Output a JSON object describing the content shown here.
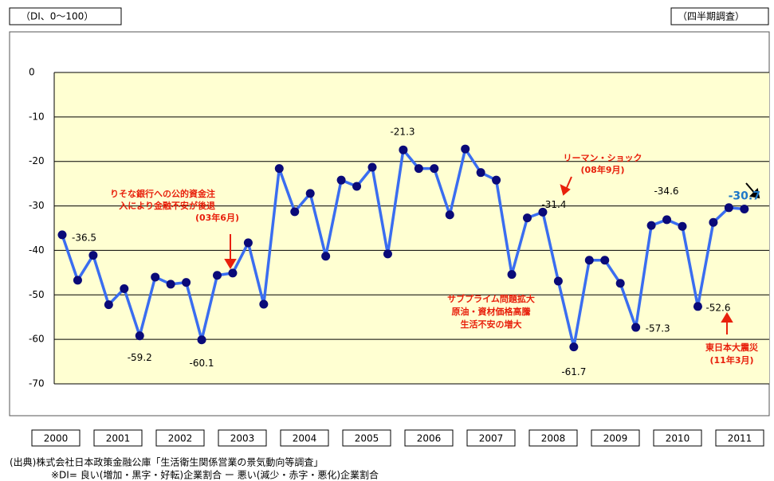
{
  "chart_data": {
    "type": "line",
    "unit_note": "（DI、0〜100）",
    "period_note": "（四半期調査）",
    "years": [
      "2000",
      "2001",
      "2002",
      "2003",
      "2004",
      "2005",
      "2006",
      "2007",
      "2008",
      "2009",
      "2010",
      "2011"
    ],
    "values": [
      -36.5,
      -46.7,
      -41.1,
      -52.2,
      -48.6,
      -59.2,
      -46.0,
      -47.6,
      -47.2,
      -60.1,
      -45.6,
      -45.1,
      -38.3,
      -52.1,
      -21.6,
      -31.3,
      -27.2,
      -41.3,
      -24.2,
      -25.6,
      -21.3,
      -40.8,
      -17.4,
      -21.6,
      -21.6,
      -32.0,
      -17.2,
      -22.5,
      -24.2,
      -45.4,
      -32.7,
      -31.4,
      -46.9,
      -61.7,
      -42.2,
      -42.2,
      -47.4,
      -57.3,
      -34.4,
      -33.1,
      -34.6,
      -52.6,
      -33.7,
      -30.4,
      -30.7
    ],
    "value_labels": [
      "-36.5",
      null,
      null,
      null,
      null,
      "-59.2",
      null,
      null,
      null,
      "-60.1",
      null,
      null,
      null,
      null,
      null,
      null,
      null,
      null,
      null,
      null,
      "-21.3",
      null,
      null,
      null,
      null,
      null,
      null,
      null,
      null,
      null,
      null,
      "-31.4",
      null,
      "-61.7",
      null,
      null,
      null,
      "-57.3",
      null,
      null,
      "-34.6",
      "-52.6",
      null,
      null,
      "-30.7"
    ],
    "color": "#3a6df0",
    "marker_color": "#0a0a78",
    "ylim": [
      -70,
      0
    ],
    "yticks": [
      0,
      -10,
      -20,
      -30,
      -40,
      -50,
      -60,
      -70
    ],
    "grid": true,
    "annotations": [
      {
        "lines": [
          "りそな銀行への公的資金注",
          "入により金融不安が後退",
          "(03年6月)"
        ]
      },
      {
        "lines": [
          "リーマン・ショック",
          "(08年9月)"
        ]
      },
      {
        "lines": [
          "サブプライム問題拡大",
          "原油・資材価格高騰",
          "生活不安の増大"
        ]
      },
      {
        "lines": [
          "東日本大震災",
          "(11年3月)"
        ]
      }
    ],
    "source": [
      "(出典)株式会社日本政策金融公庫「生活衛生関係営業の景気動向等調査」",
      "※DI= 良い(増加・黒字・好転)企業割合 ー 悪い(減少・赤字・悪化)企業割合"
    ]
  }
}
